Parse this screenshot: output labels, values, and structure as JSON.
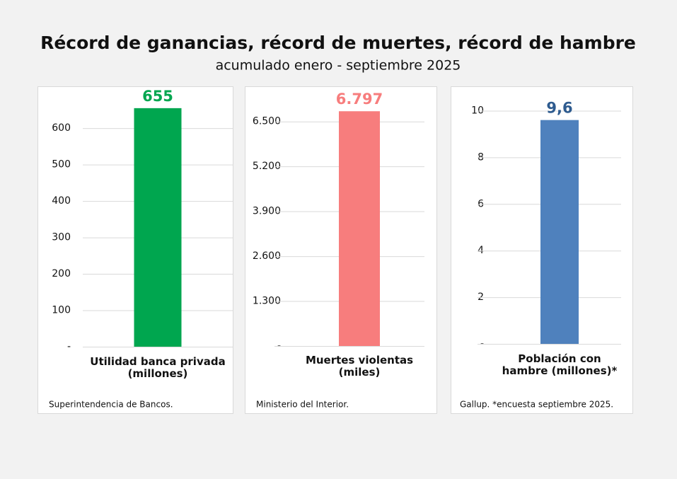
{
  "title": "Récord de ganancias, récord de muertes, récord de hambre",
  "subtitle": "acumulado enero - septiembre 2025",
  "chart_data": [
    {
      "type": "bar",
      "categories": [
        "Utilidad banca privada\n(millones)"
      ],
      "values": [
        655
      ],
      "color": "#00a64f",
      "label_color": "#00a64f",
      "ylim": [
        0,
        680
      ],
      "yticks": [
        {
          "value": 0,
          "label": "-"
        },
        100,
        200,
        300,
        400,
        500,
        600
      ],
      "grid": true,
      "note": "Superintendencia de Bancos."
    },
    {
      "type": "bar",
      "categories": [
        "Muertes violentas\n(miles)"
      ],
      "values": [
        6797
      ],
      "value_labels": [
        "6.797"
      ],
      "color": "#f77d7d",
      "label_color": "#f77d7d",
      "ylim": [
        0,
        7150
      ],
      "yticks": [
        {
          "value": 0,
          "label": "-"
        },
        {
          "value": 1300,
          "label": "1.300"
        },
        {
          "value": 2600,
          "label": "2.600"
        },
        {
          "value": 3900,
          "label": "3.900"
        },
        {
          "value": 5200,
          "label": "5.200"
        },
        {
          "value": 6500,
          "label": "6.500"
        }
      ],
      "grid": true,
      "note": "Ministerio del Interior."
    },
    {
      "type": "bar",
      "categories": [
        "Población con\nhambre (millones)*"
      ],
      "values": [
        9.6
      ],
      "value_labels": [
        "9,6"
      ],
      "color": "#4f81bd",
      "label_color": "#2e5b8f",
      "ylim": [
        0,
        10.5
      ],
      "yticks": [
        {
          "value": 0,
          "label": "-"
        },
        2,
        4,
        6,
        8,
        10
      ],
      "grid": true,
      "note": "Gallup. *encuesta septiembre 2025."
    }
  ]
}
